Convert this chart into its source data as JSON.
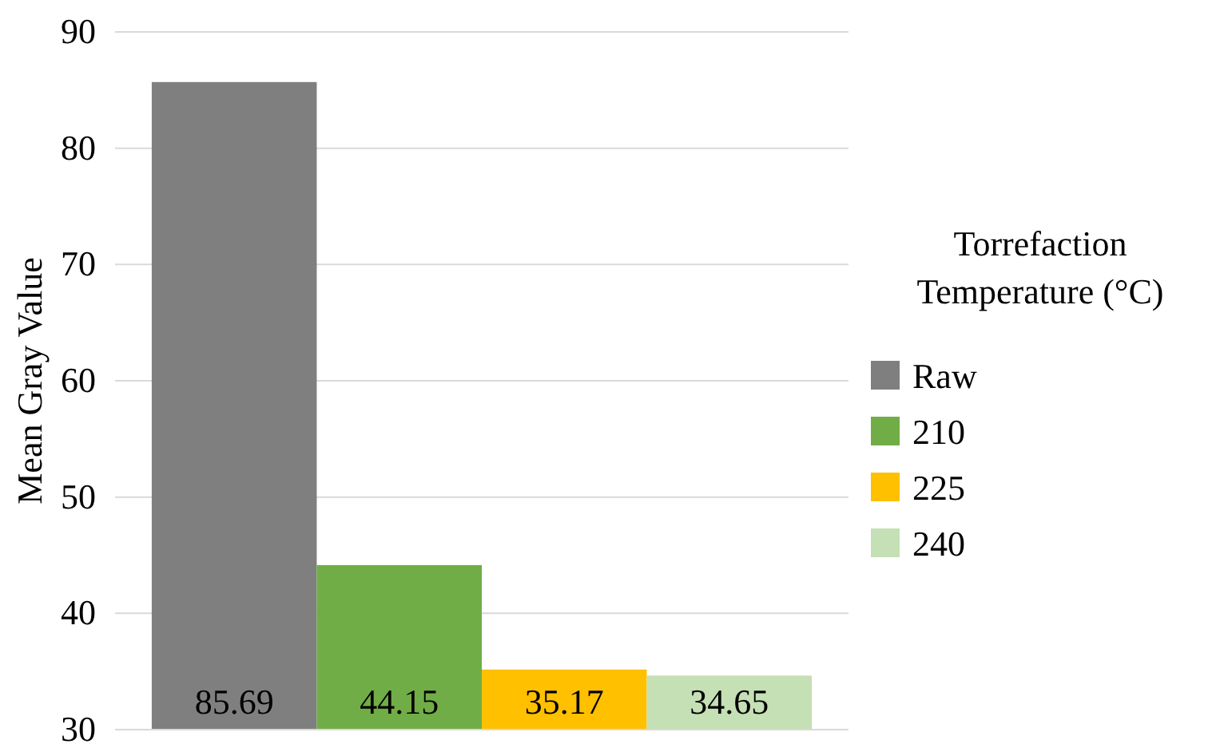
{
  "chart_data": {
    "type": "bar",
    "ylabel": "Mean Gray Value",
    "legend_title": "Torrefaction Temperature (°C)",
    "categories": [
      null
    ],
    "series": [
      {
        "name": "Raw",
        "color": "#7f7f7f",
        "values": [
          85.69
        ]
      },
      {
        "name": "210",
        "color": "#70ad47",
        "values": [
          44.15
        ]
      },
      {
        "name": "225",
        "color": "#ffc000",
        "values": [
          35.17
        ]
      },
      {
        "name": "240",
        "color": "#c5e0b4",
        "values": [
          34.65
        ]
      }
    ],
    "ylim": [
      30,
      90
    ],
    "yticks": [
      30,
      40,
      50,
      60,
      70,
      80,
      90
    ],
    "grid": "y",
    "legend": "right",
    "data_labels": true
  }
}
